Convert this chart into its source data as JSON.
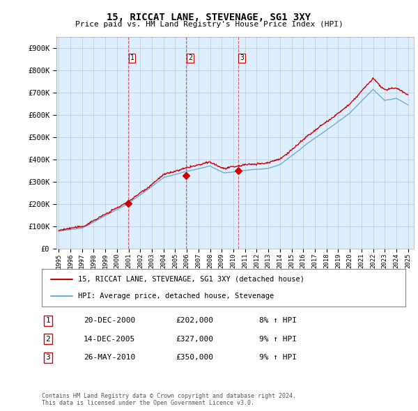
{
  "title": "15, RICCAT LANE, STEVENAGE, SG1 3XY",
  "subtitle": "Price paid vs. HM Land Registry's House Price Index (HPI)",
  "ylabel_ticks": [
    "£0",
    "£100K",
    "£200K",
    "£300K",
    "£400K",
    "£500K",
    "£600K",
    "£700K",
    "£800K",
    "£900K"
  ],
  "ytick_values": [
    0,
    100000,
    200000,
    300000,
    400000,
    500000,
    600000,
    700000,
    800000,
    900000
  ],
  "ylim": [
    0,
    950000
  ],
  "xlim_start": 1994.8,
  "xlim_end": 2025.5,
  "sale_color": "#cc0000",
  "hpi_color": "#6baed6",
  "chart_bg_color": "#ddeeff",
  "purchase_dates": [
    2000.97,
    2005.96,
    2010.4
  ],
  "purchase_prices": [
    202000,
    327000,
    350000
  ],
  "purchase_labels": [
    "1",
    "2",
    "3"
  ],
  "vline_dates": [
    2000.97,
    2005.96,
    2010.4
  ],
  "legend_sale": "15, RICCAT LANE, STEVENAGE, SG1 3XY (detached house)",
  "legend_hpi": "HPI: Average price, detached house, Stevenage",
  "table_data": [
    [
      "1",
      "20-DEC-2000",
      "£202,000",
      "8% ↑ HPI"
    ],
    [
      "2",
      "14-DEC-2005",
      "£327,000",
      "9% ↑ HPI"
    ],
    [
      "3",
      "26-MAY-2010",
      "£350,000",
      "9% ↑ HPI"
    ]
  ],
  "footnote": "Contains HM Land Registry data © Crown copyright and database right 2024.\nThis data is licensed under the Open Government Licence v3.0.",
  "background_color": "#ffffff",
  "grid_color": "#bbbbbb",
  "xtick_years": [
    1995,
    1996,
    1997,
    1998,
    1999,
    2000,
    2001,
    2002,
    2003,
    2004,
    2005,
    2006,
    2007,
    2008,
    2009,
    2010,
    2011,
    2012,
    2013,
    2014,
    2015,
    2016,
    2017,
    2018,
    2019,
    2020,
    2021,
    2022,
    2023,
    2024,
    2025
  ]
}
